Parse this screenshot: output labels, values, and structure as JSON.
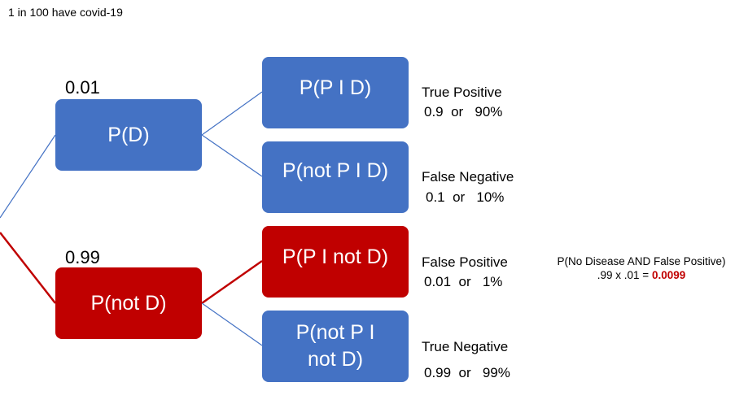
{
  "title": "1 in 100 have covid-19",
  "colors": {
    "blue": "#4472c4",
    "red": "#c00000",
    "edge_blue": "#4472c4",
    "edge_red": "#c00000"
  },
  "nodes": {
    "pd": {
      "label": "P(D)",
      "prob": "0.01"
    },
    "pnotd": {
      "label": "P(not D)",
      "prob": "0.99"
    },
    "ppd": {
      "label": "P(P I D)"
    },
    "pnotpd": {
      "label": "P(not P I D)"
    },
    "ppnotd": {
      "label": "P(P I not D)"
    },
    "pnotpnotd": {
      "line1": "P(not P I",
      "line2": "not D)"
    }
  },
  "outcomes": {
    "tp": {
      "name": "True Positive",
      "value": "0.9  or   90%"
    },
    "fn": {
      "name": "False Negative",
      "value": "0.1  or   10%"
    },
    "fp": {
      "name": "False Positive",
      "value": "0.01  or   1%"
    },
    "tn": {
      "name": "True Negative",
      "value": "0.99  or   99%"
    }
  },
  "calc": {
    "line1": "P(No Disease AND False Positive)",
    "expr": ".99 x .01 = ",
    "result": "0.0099"
  }
}
